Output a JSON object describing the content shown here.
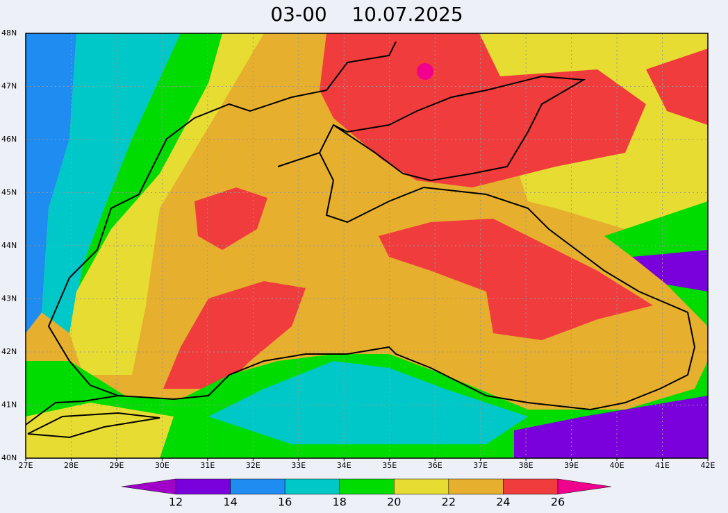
{
  "title": "03-00    10.07.2025",
  "longitude_labels": [
    "27E",
    "28E",
    "29E",
    "30E",
    "31E",
    "32E",
    "33E",
    "34E",
    "35E",
    "36E",
    "37E",
    "38E",
    "39E",
    "40E",
    "41E",
    "42E"
  ],
  "latitude_labels": [
    "40N",
    "41N",
    "42N",
    "43N",
    "44N",
    "45N",
    "46N",
    "47N",
    "48N"
  ],
  "colorbar": {
    "levels": [
      12,
      14,
      16,
      18,
      20,
      22,
      24,
      26
    ],
    "colors": [
      "#a000c8",
      "#7a00dc",
      "#1e8cf0",
      "#00c8c8",
      "#00dc00",
      "#e6dc32",
      "#e6af2d",
      "#f03c3c",
      "#f0008c"
    ]
  }
}
